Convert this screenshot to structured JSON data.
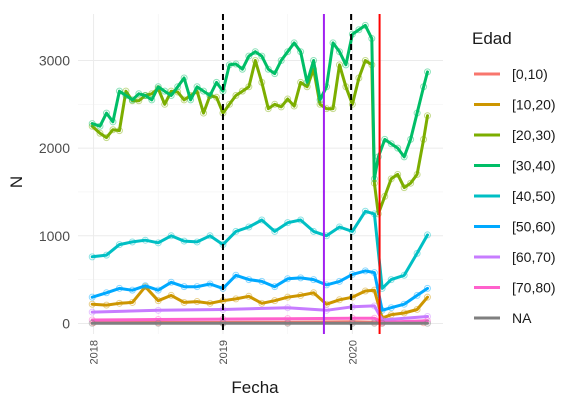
{
  "chart_data": {
    "type": "line",
    "xlabel": "Fecha",
    "ylabel": "N",
    "x_range": [
      2017.88,
      2020.7
    ],
    "y_range": [
      -120,
      3530
    ],
    "x_ticks": [
      {
        "value": 2018,
        "label": "2018"
      },
      {
        "value": 2019,
        "label": "2019"
      },
      {
        "value": 2020,
        "label": "2020"
      }
    ],
    "y_ticks": [
      {
        "value": 0,
        "label": "0"
      },
      {
        "value": 1000,
        "label": "1000"
      },
      {
        "value": 2000,
        "label": "2000"
      },
      {
        "value": 3000,
        "label": "3000"
      }
    ],
    "grid": true,
    "legend_title": "Edad",
    "legend_position": "right",
    "series": [
      {
        "name": "[0,10)",
        "color": "#F8766D",
        "x": [
          2018.0,
          2018.5,
          2019.0,
          2019.5,
          2020.0,
          2020.17,
          2020.23,
          2020.55
        ],
        "values": [
          10,
          12,
          12,
          15,
          20,
          15,
          5,
          8
        ]
      },
      {
        "name": "[10,20)",
        "color": "#CD9600",
        "x": [
          2017.99,
          2018.1,
          2018.2,
          2018.3,
          2018.4,
          2018.5,
          2018.6,
          2018.7,
          2018.8,
          2018.9,
          2019.0,
          2019.1,
          2019.2,
          2019.3,
          2019.4,
          2019.5,
          2019.6,
          2019.7,
          2019.8,
          2019.9,
          2020.0,
          2020.1,
          2020.17,
          2020.23,
          2020.3,
          2020.4,
          2020.5,
          2020.58
        ],
        "values": [
          220,
          210,
          230,
          240,
          420,
          260,
          320,
          240,
          250,
          230,
          260,
          280,
          310,
          230,
          260,
          300,
          320,
          350,
          220,
          270,
          300,
          370,
          380,
          60,
          100,
          120,
          160,
          300
        ]
      },
      {
        "name": "[20,30)",
        "color": "#7CAE00",
        "x": [
          2017.99,
          2018.05,
          2018.1,
          2018.15,
          2018.2,
          2018.25,
          2018.3,
          2018.35,
          2018.4,
          2018.45,
          2018.5,
          2018.55,
          2018.6,
          2018.65,
          2018.7,
          2018.75,
          2018.8,
          2018.85,
          2018.9,
          2018.95,
          2019.0,
          2019.05,
          2019.1,
          2019.15,
          2019.2,
          2019.25,
          2019.3,
          2019.35,
          2019.4,
          2019.45,
          2019.5,
          2019.55,
          2019.6,
          2019.65,
          2019.7,
          2019.75,
          2019.8,
          2019.85,
          2019.9,
          2019.95,
          2020.0,
          2020.05,
          2020.1,
          2020.15,
          2020.17,
          2020.2,
          2020.25,
          2020.3,
          2020.35,
          2020.4,
          2020.45,
          2020.5,
          2020.55,
          2020.58
        ],
        "values": [
          2250,
          2170,
          2120,
          2210,
          2200,
          2650,
          2540,
          2540,
          2600,
          2620,
          2680,
          2500,
          2650,
          2640,
          2550,
          2600,
          2650,
          2400,
          2600,
          2580,
          2400,
          2500,
          2600,
          2650,
          2700,
          3000,
          2750,
          2450,
          2500,
          2470,
          2560,
          2480,
          2750,
          2700,
          2900,
          2500,
          2450,
          2450,
          2950,
          2700,
          2500,
          2800,
          3000,
          2950,
          1600,
          1250,
          1450,
          1650,
          1700,
          1550,
          1600,
          1700,
          2100,
          2370
        ]
      },
      {
        "name": "[30,40)",
        "color": "#00BE67",
        "x": [
          2017.99,
          2018.05,
          2018.1,
          2018.15,
          2018.2,
          2018.25,
          2018.3,
          2018.35,
          2018.4,
          2018.45,
          2018.5,
          2018.55,
          2018.6,
          2018.65,
          2018.7,
          2018.75,
          2018.8,
          2018.85,
          2018.9,
          2018.95,
          2019.0,
          2019.05,
          2019.1,
          2019.15,
          2019.2,
          2019.25,
          2019.3,
          2019.35,
          2019.4,
          2019.45,
          2019.5,
          2019.55,
          2019.6,
          2019.65,
          2019.7,
          2019.75,
          2019.8,
          2019.85,
          2019.9,
          2019.95,
          2020.0,
          2020.05,
          2020.1,
          2020.15,
          2020.17,
          2020.2,
          2020.25,
          2020.3,
          2020.35,
          2020.4,
          2020.45,
          2020.5,
          2020.55,
          2020.58
        ],
        "values": [
          2280,
          2250,
          2400,
          2300,
          2650,
          2600,
          2550,
          2620,
          2600,
          2550,
          2700,
          2650,
          2600,
          2700,
          2800,
          2550,
          2700,
          2650,
          2600,
          2750,
          2650,
          2950,
          2960,
          2900,
          3050,
          3100,
          3050,
          2900,
          2850,
          3000,
          3100,
          3200,
          3100,
          2750,
          3000,
          2550,
          2700,
          3200,
          3100,
          2950,
          3300,
          3350,
          3400,
          3250,
          1650,
          1900,
          2100,
          2050,
          2000,
          1900,
          2100,
          2400,
          2700,
          2870
        ]
      },
      {
        "name": "[40,50)",
        "color": "#00BFC4",
        "x": [
          2017.99,
          2018.1,
          2018.2,
          2018.3,
          2018.4,
          2018.5,
          2018.6,
          2018.7,
          2018.8,
          2018.9,
          2019.0,
          2019.1,
          2019.2,
          2019.3,
          2019.4,
          2019.5,
          2019.6,
          2019.7,
          2019.8,
          2019.9,
          2020.0,
          2020.1,
          2020.17,
          2020.23,
          2020.3,
          2020.4,
          2020.5,
          2020.58
        ],
        "values": [
          760,
          780,
          900,
          930,
          950,
          920,
          1000,
          940,
          930,
          1000,
          900,
          1050,
          1100,
          1180,
          1050,
          1150,
          1180,
          1050,
          1000,
          1100,
          1050,
          1280,
          1250,
          400,
          500,
          550,
          800,
          1010
        ]
      },
      {
        "name": "[50,60)",
        "color": "#00A9FF",
        "x": [
          2017.99,
          2018.1,
          2018.2,
          2018.3,
          2018.4,
          2018.5,
          2018.6,
          2018.7,
          2018.8,
          2018.9,
          2019.0,
          2019.1,
          2019.2,
          2019.3,
          2019.4,
          2019.5,
          2019.6,
          2019.7,
          2019.8,
          2019.9,
          2020.0,
          2020.1,
          2020.17,
          2020.23,
          2020.3,
          2020.4,
          2020.5,
          2020.58
        ],
        "values": [
          300,
          350,
          400,
          380,
          430,
          380,
          470,
          420,
          420,
          450,
          400,
          550,
          500,
          480,
          420,
          510,
          520,
          500,
          440,
          480,
          560,
          600,
          580,
          150,
          180,
          220,
          320,
          400
        ]
      },
      {
        "name": "[60,70)",
        "color": "#C77CFF",
        "x": [
          2017.99,
          2018.5,
          2019.0,
          2019.5,
          2019.8,
          2020.0,
          2020.17,
          2020.23,
          2020.58
        ],
        "values": [
          130,
          150,
          160,
          180,
          150,
          190,
          200,
          40,
          80
        ]
      },
      {
        "name": "[70,80)",
        "color": "#FF61CC",
        "x": [
          2017.99,
          2018.5,
          2019.0,
          2019.5,
          2020.0,
          2020.17,
          2020.23,
          2020.58
        ],
        "values": [
          40,
          45,
          50,
          55,
          60,
          60,
          15,
          30
        ]
      },
      {
        "name": "NA",
        "color": "#7F7F7F",
        "x": [
          2017.99,
          2018.5,
          2019.0,
          2019.5,
          2020.0,
          2020.17,
          2020.23,
          2020.58
        ],
        "values": [
          3,
          3,
          3,
          3,
          3,
          3,
          2,
          3
        ]
      }
    ],
    "vertical_lines": [
      {
        "x": 2019.0,
        "color": "#000000",
        "style": "dashed"
      },
      {
        "x": 2019.78,
        "color": "#A020F0",
        "style": "solid"
      },
      {
        "x": 2019.99,
        "color": "#000000",
        "style": "dashed"
      },
      {
        "x": 2020.21,
        "color": "#FF0000",
        "style": "solid"
      }
    ]
  }
}
